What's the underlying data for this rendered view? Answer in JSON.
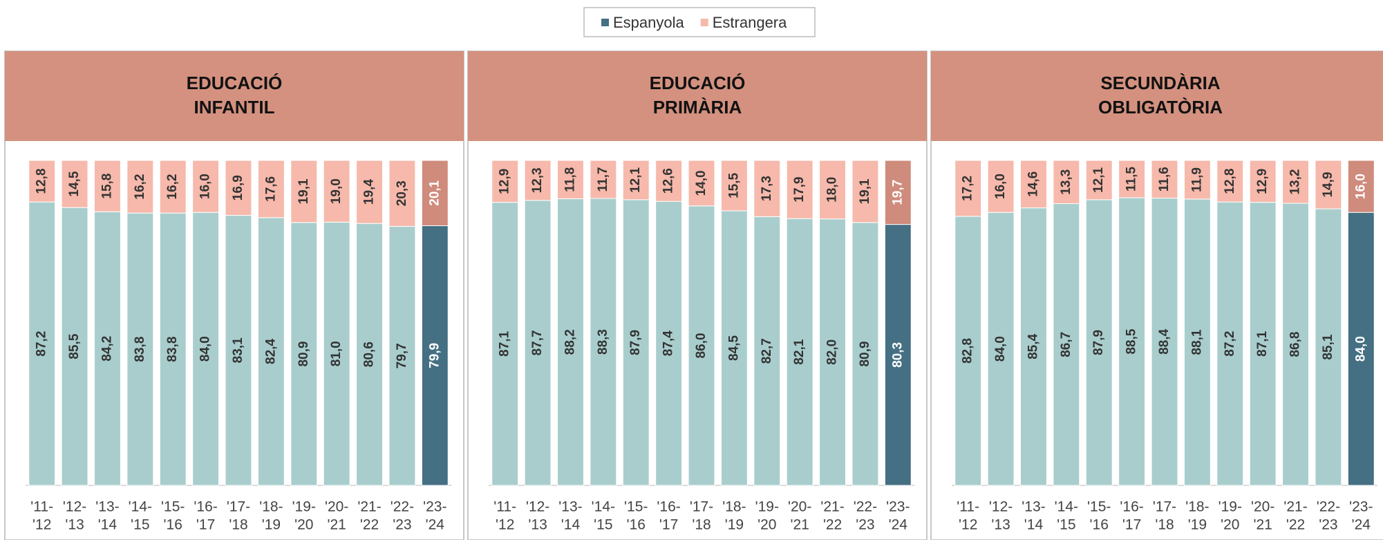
{
  "legend": [
    "Espanyola",
    "Estrangera"
  ],
  "chart_data": [
    {
      "type": "bar",
      "stacked": true,
      "title": [
        "EDUCACIÓ",
        "INFANTIL"
      ],
      "categories": [
        [
          "'11-",
          "'12"
        ],
        [
          "'12-",
          "'13"
        ],
        [
          "'13-",
          "'14"
        ],
        [
          "'14-",
          "'15"
        ],
        [
          "'15-",
          "'16"
        ],
        [
          "'16-",
          "'17"
        ],
        [
          "'17-",
          "'18"
        ],
        [
          "'18-",
          "'19"
        ],
        [
          "'19-",
          "'20"
        ],
        [
          "'20-",
          "'21"
        ],
        [
          "'21-",
          "'22"
        ],
        [
          "'22-",
          "'23"
        ],
        [
          "'23-",
          "'24"
        ]
      ],
      "ylim": [
        0,
        100
      ],
      "series": [
        {
          "name": "Espanyola",
          "color": "#a9cdcd",
          "highlight_color": "#456f83",
          "values": [
            87.2,
            85.5,
            84.2,
            83.8,
            83.8,
            84.0,
            83.1,
            82.4,
            80.9,
            81.0,
            80.6,
            79.7,
            79.9
          ],
          "value_labels": [
            "87,2",
            "85,5",
            "84,2",
            "83,8",
            "83,8",
            "84,0",
            "83,1",
            "82,4",
            "80,9",
            "81,0",
            "80,6",
            "79,7",
            "79,9"
          ]
        },
        {
          "name": "Estrangera",
          "color": "#f6b9ab",
          "highlight_color": "#cf8b7c",
          "values": [
            12.8,
            14.5,
            15.8,
            16.2,
            16.2,
            16.0,
            16.9,
            17.6,
            19.1,
            19.0,
            19.4,
            20.3,
            20.1
          ],
          "value_labels": [
            "12,8",
            "14,5",
            "15,8",
            "16,2",
            "16,2",
            "16,0",
            "16,9",
            "17,6",
            "19,1",
            "19,0",
            "19,4",
            "20,3",
            "20,1"
          ]
        }
      ]
    },
    {
      "type": "bar",
      "stacked": true,
      "title": [
        "EDUCACIÓ",
        "PRIMÀRIA"
      ],
      "categories": [
        [
          "'11-",
          "'12"
        ],
        [
          "'12-",
          "'13"
        ],
        [
          "'13-",
          "'14"
        ],
        [
          "'14-",
          "'15"
        ],
        [
          "'15-",
          "'16"
        ],
        [
          "'16-",
          "'17"
        ],
        [
          "'17-",
          "'18"
        ],
        [
          "'18-",
          "'19"
        ],
        [
          "'19-",
          "'20"
        ],
        [
          "'20-",
          "'21"
        ],
        [
          "'21-",
          "'22"
        ],
        [
          "'22-",
          "'23"
        ],
        [
          "'23-",
          "'24"
        ]
      ],
      "ylim": [
        0,
        100
      ],
      "series": [
        {
          "name": "Espanyola",
          "color": "#a9cdcd",
          "highlight_color": "#456f83",
          "values": [
            87.1,
            87.7,
            88.2,
            88.3,
            87.9,
            87.4,
            86.0,
            84.5,
            82.7,
            82.1,
            82.0,
            80.9,
            80.3
          ],
          "value_labels": [
            "87,1",
            "87,7",
            "88,2",
            "88,3",
            "87,9",
            "87,4",
            "86,0",
            "84,5",
            "82,7",
            "82,1",
            "82,0",
            "80,9",
            "80,3"
          ]
        },
        {
          "name": "Estrangera",
          "color": "#f6b9ab",
          "highlight_color": "#cf8b7c",
          "values": [
            12.9,
            12.3,
            11.8,
            11.7,
            12.1,
            12.6,
            14.0,
            15.5,
            17.3,
            17.9,
            18.0,
            19.1,
            19.7
          ],
          "value_labels": [
            "12,9",
            "12,3",
            "11,8",
            "11,7",
            "12,1",
            "12,6",
            "14,0",
            "15,5",
            "17,3",
            "17,9",
            "18,0",
            "19,1",
            "19,7"
          ]
        }
      ]
    },
    {
      "type": "bar",
      "stacked": true,
      "title": [
        "SECUNDÀRIA",
        "OBLIGATÒRIA"
      ],
      "categories": [
        [
          "'11-",
          "'12"
        ],
        [
          "'12-",
          "'13"
        ],
        [
          "'13-",
          "'14"
        ],
        [
          "'14-",
          "'15"
        ],
        [
          "'15-",
          "'16"
        ],
        [
          "'16-",
          "'17"
        ],
        [
          "'17-",
          "'18"
        ],
        [
          "'18-",
          "'19"
        ],
        [
          "'19-",
          "'20"
        ],
        [
          "'20-",
          "'21"
        ],
        [
          "'21-",
          "'22"
        ],
        [
          "'22-",
          "'23"
        ],
        [
          "'23-",
          "'24"
        ]
      ],
      "ylim": [
        0,
        100
      ],
      "series": [
        {
          "name": "Espanyola",
          "color": "#a9cdcd",
          "highlight_color": "#456f83",
          "values": [
            82.8,
            84.0,
            85.4,
            86.7,
            87.9,
            88.5,
            88.4,
            88.1,
            87.2,
            87.1,
            86.8,
            85.1,
            84.0
          ],
          "value_labels": [
            "82,8",
            "84,0",
            "85,4",
            "86,7",
            "87,9",
            "88,5",
            "88,4",
            "88,1",
            "87,2",
            "87,1",
            "86,8",
            "85,1",
            "84,0"
          ]
        },
        {
          "name": "Estrangera",
          "color": "#f6b9ab",
          "highlight_color": "#cf8b7c",
          "values": [
            17.2,
            16.0,
            14.6,
            13.3,
            12.1,
            11.5,
            11.6,
            11.9,
            12.8,
            12.9,
            13.2,
            14.9,
            16.0
          ],
          "value_labels": [
            "17,2",
            "16,0",
            "14,6",
            "13,3",
            "12,1",
            "11,5",
            "11,6",
            "11,9",
            "12,8",
            "12,9",
            "13,2",
            "14,9",
            "16,0"
          ]
        }
      ]
    }
  ]
}
